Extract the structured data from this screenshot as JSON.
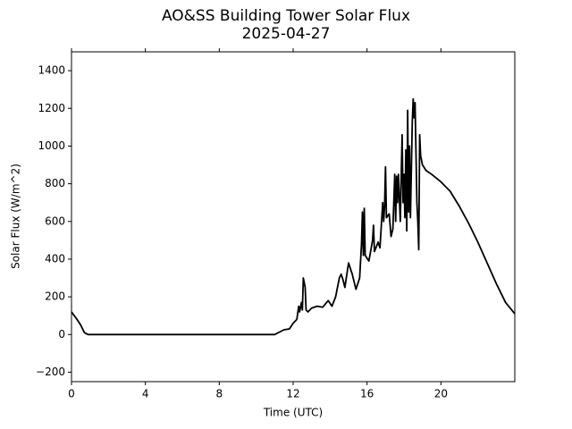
{
  "chart_data": {
    "type": "line",
    "title": "AO&SS Building Tower Solar Flux",
    "subtitle": "2025-04-27",
    "x_label": "Time (UTC)",
    "y_label": "Solar Flux (W/m^2)",
    "color": "#000000",
    "xlim": [
      0,
      24
    ],
    "ylim": [
      -250,
      1500
    ],
    "xticks": [
      0,
      4,
      8,
      12,
      16,
      20
    ],
    "yticks": [
      {
        "value": -200,
        "label": "−200"
      },
      0,
      200,
      400,
      600,
      800,
      1000,
      1200,
      1400
    ],
    "x": [
      0,
      0.3,
      0.5,
      0.7,
      0.9,
      2,
      6,
      10,
      11,
      11.3,
      11.5,
      11.8,
      12,
      12.2,
      12.3,
      12.35,
      12.45,
      12.5,
      12.55,
      12.65,
      12.7,
      12.8,
      13,
      13.3,
      13.6,
      13.9,
      14.1,
      14.3,
      14.5,
      14.6,
      14.7,
      14.8,
      15,
      15.2,
      15.4,
      15.6,
      15.7,
      15.75,
      15.8,
      15.85,
      15.9,
      16.1,
      16.3,
      16.35,
      16.4,
      16.6,
      16.7,
      16.8,
      16.85,
      16.9,
      16.95,
      17,
      17.05,
      17.2,
      17.3,
      17.4,
      17.5,
      17.55,
      17.6,
      17.65,
      17.7,
      17.8,
      17.9,
      17.95,
      18,
      18.05,
      18.1,
      18.15,
      18.2,
      18.25,
      18.3,
      18.35,
      18.45,
      18.5,
      18.55,
      18.6,
      18.7,
      18.75,
      18.8,
      18.85,
      18.9,
      19,
      19.2,
      19.5,
      20,
      20.5,
      21,
      21.5,
      22,
      22.5,
      23,
      23.5,
      24
    ],
    "values": [
      120,
      80,
      50,
      10,
      0,
      0,
      0,
      0,
      0,
      15,
      25,
      30,
      60,
      80,
      150,
      120,
      170,
      130,
      300,
      250,
      130,
      120,
      140,
      150,
      145,
      180,
      150,
      200,
      300,
      320,
      290,
      250,
      380,
      320,
      240,
      300,
      480,
      650,
      420,
      670,
      420,
      390,
      500,
      580,
      440,
      490,
      460,
      620,
      700,
      600,
      680,
      890,
      620,
      640,
      520,
      560,
      850,
      600,
      840,
      700,
      850,
      600,
      1060,
      700,
      850,
      620,
      980,
      550,
      1190,
      650,
      1000,
      620,
      1130,
      1250,
      1150,
      1230,
      700,
      600,
      450,
      1060,
      950,
      900,
      870,
      850,
      810,
      760,
      680,
      590,
      490,
      380,
      270,
      170,
      110
    ]
  }
}
